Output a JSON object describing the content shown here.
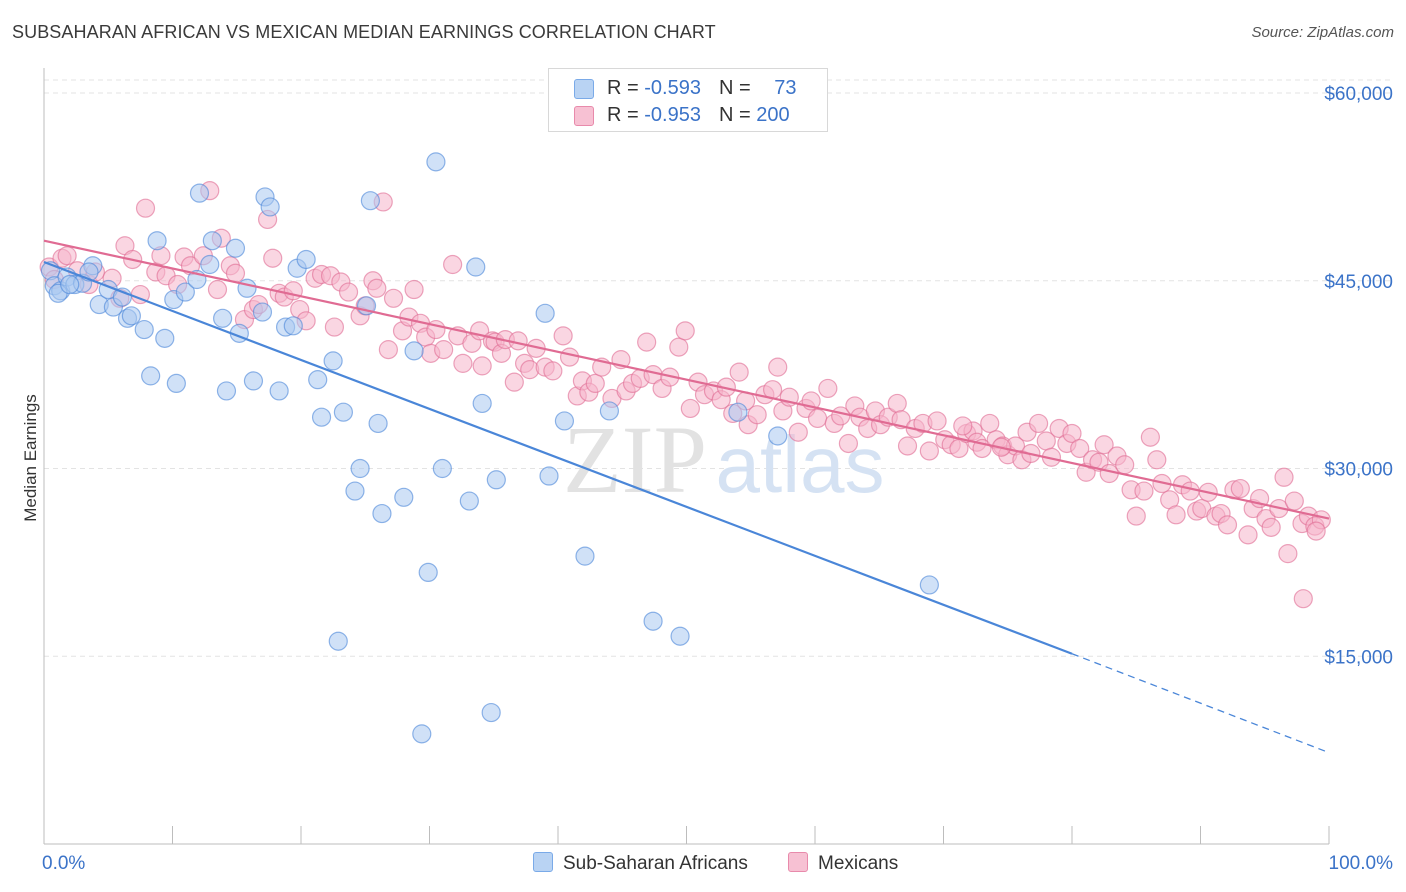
{
  "title": "SUBSAHARAN AFRICAN VS MEXICAN MEDIAN EARNINGS CORRELATION CHART",
  "source": "Source: ZipAtlas.com",
  "watermark": {
    "zip": "ZIP",
    "atlas": "atlas"
  },
  "legend": {
    "rows": [
      {
        "r_label": "R = ",
        "r_value": "-0.593",
        "n_label": "N = ",
        "n_value": "73",
        "color": "#7aaae8",
        "fill": "#b9d3f3"
      },
      {
        "r_label": "R = ",
        "r_value": "-0.953",
        "n_label": "N = ",
        "n_value": "200",
        "color": "#e88aab",
        "fill": "#f7c1d3"
      }
    ]
  },
  "chart_data": {
    "type": "scatter",
    "title": "SUBSAHARAN AFRICAN VS MEXICAN MEDIAN EARNINGS CORRELATION CHART",
    "xlabel": "",
    "ylabel": "Median Earnings",
    "xlim": [
      0,
      100
    ],
    "ylim": [
      0,
      62000
    ],
    "x_tick_labels": [
      "0.0%",
      "100.0%"
    ],
    "y_ticks": [
      15000,
      30000,
      45000,
      60000
    ],
    "y_tick_labels": [
      "$15,000",
      "$30,000",
      "$45,000",
      "$60,000"
    ],
    "grid": true,
    "legend_position": "bottom",
    "series": [
      {
        "name": "Sub-Saharan Africans",
        "color": "#4a86d8",
        "fill": "#a9c8f0",
        "trend": {
          "x0": 0,
          "y0": 46500,
          "x1": 80,
          "y1": 15200,
          "dash_to_x": 100,
          "dash_to_y": 7300
        },
        "points": [
          [
            0.5,
            45800
          ],
          [
            0.8,
            44600
          ],
          [
            1.3,
            44200
          ],
          [
            1.8,
            45300
          ],
          [
            2.4,
            44700
          ],
          [
            3.0,
            44800
          ],
          [
            3.8,
            46200
          ],
          [
            4.3,
            43100
          ],
          [
            5.0,
            44300
          ],
          [
            5.4,
            42900
          ],
          [
            6.1,
            43700
          ],
          [
            6.5,
            42000
          ],
          [
            6.8,
            42200
          ],
          [
            7.8,
            41100
          ],
          [
            8.3,
            37400
          ],
          [
            8.8,
            48200
          ],
          [
            9.4,
            40400
          ],
          [
            10.1,
            43500
          ],
          [
            10.3,
            36800
          ],
          [
            11.0,
            44100
          ],
          [
            11.9,
            45100
          ],
          [
            12.1,
            52000
          ],
          [
            12.9,
            46300
          ],
          [
            13.1,
            48200
          ],
          [
            13.9,
            42000
          ],
          [
            14.2,
            36200
          ],
          [
            14.9,
            47600
          ],
          [
            15.2,
            40800
          ],
          [
            15.8,
            44400
          ],
          [
            16.3,
            37000
          ],
          [
            17.0,
            42500
          ],
          [
            17.2,
            51700
          ],
          [
            17.6,
            50900
          ],
          [
            18.3,
            36200
          ],
          [
            18.8,
            41300
          ],
          [
            19.4,
            41400
          ],
          [
            19.7,
            46000
          ],
          [
            20.4,
            46700
          ],
          [
            21.3,
            37100
          ],
          [
            21.6,
            34100
          ],
          [
            22.5,
            38600
          ],
          [
            22.9,
            16200
          ],
          [
            23.3,
            34500
          ],
          [
            24.2,
            28200
          ],
          [
            24.6,
            30000
          ],
          [
            25.1,
            43000
          ],
          [
            25.4,
            51400
          ],
          [
            26.0,
            33600
          ],
          [
            26.3,
            26400
          ],
          [
            28.0,
            27700
          ],
          [
            28.8,
            39400
          ],
          [
            29.4,
            8800
          ],
          [
            29.9,
            21700
          ],
          [
            30.5,
            54500
          ],
          [
            31.0,
            30000
          ],
          [
            33.1,
            27400
          ],
          [
            33.6,
            46100
          ],
          [
            34.1,
            35200
          ],
          [
            34.8,
            10500
          ],
          [
            35.2,
            29100
          ],
          [
            39.0,
            42400
          ],
          [
            39.3,
            29400
          ],
          [
            40.5,
            33800
          ],
          [
            42.1,
            23000
          ],
          [
            44.0,
            34600
          ],
          [
            47.4,
            17800
          ],
          [
            49.5,
            16600
          ],
          [
            54.0,
            34500
          ],
          [
            57.1,
            32600
          ],
          [
            68.9,
            20700
          ],
          [
            1.1,
            44000
          ],
          [
            2.0,
            44700
          ],
          [
            3.5,
            45700
          ]
        ]
      },
      {
        "name": "Mexicans",
        "color": "#e06b93",
        "fill": "#f5b5ca",
        "trend": {
          "x0": 0,
          "y0": 48200,
          "x1": 100,
          "y1": 26000
        },
        "points": [
          [
            0.4,
            46100
          ],
          [
            0.8,
            45100
          ],
          [
            1.4,
            46800
          ],
          [
            1.8,
            47000
          ],
          [
            2.6,
            45800
          ],
          [
            3.5,
            44700
          ],
          [
            4.0,
            45700
          ],
          [
            5.3,
            45200
          ],
          [
            5.9,
            43600
          ],
          [
            6.3,
            47800
          ],
          [
            6.9,
            46700
          ],
          [
            7.5,
            43900
          ],
          [
            7.9,
            50800
          ],
          [
            8.7,
            45700
          ],
          [
            9.1,
            47000
          ],
          [
            9.5,
            45400
          ],
          [
            10.4,
            44700
          ],
          [
            10.9,
            46900
          ],
          [
            11.4,
            46200
          ],
          [
            12.4,
            47000
          ],
          [
            12.9,
            52200
          ],
          [
            13.5,
            44300
          ],
          [
            13.8,
            48400
          ],
          [
            14.5,
            46200
          ],
          [
            14.9,
            45600
          ],
          [
            15.6,
            41900
          ],
          [
            16.3,
            42700
          ],
          [
            16.7,
            43100
          ],
          [
            17.4,
            49900
          ],
          [
            17.8,
            46800
          ],
          [
            18.3,
            44000
          ],
          [
            18.7,
            43700
          ],
          [
            19.4,
            44200
          ],
          [
            19.9,
            42700
          ],
          [
            20.4,
            41800
          ],
          [
            21.1,
            45200
          ],
          [
            21.6,
            45500
          ],
          [
            22.3,
            45400
          ],
          [
            22.6,
            41300
          ],
          [
            23.1,
            44900
          ],
          [
            23.7,
            44100
          ],
          [
            24.6,
            42200
          ],
          [
            25.0,
            43000
          ],
          [
            25.6,
            45000
          ],
          [
            25.9,
            44400
          ],
          [
            26.4,
            51300
          ],
          [
            26.8,
            39500
          ],
          [
            27.2,
            43600
          ],
          [
            27.9,
            41000
          ],
          [
            28.4,
            42100
          ],
          [
            28.8,
            44300
          ],
          [
            29.3,
            41600
          ],
          [
            29.7,
            40500
          ],
          [
            30.1,
            39200
          ],
          [
            30.5,
            41100
          ],
          [
            31.1,
            39500
          ],
          [
            31.8,
            46300
          ],
          [
            32.2,
            40600
          ],
          [
            32.6,
            38400
          ],
          [
            33.3,
            40000
          ],
          [
            33.9,
            41000
          ],
          [
            34.1,
            38200
          ],
          [
            34.9,
            40200
          ],
          [
            35.1,
            40100
          ],
          [
            35.6,
            39200
          ],
          [
            35.9,
            40300
          ],
          [
            36.6,
            36900
          ],
          [
            36.9,
            40200
          ],
          [
            37.4,
            38400
          ],
          [
            37.8,
            37900
          ],
          [
            38.3,
            39600
          ],
          [
            39.0,
            38100
          ],
          [
            39.6,
            37800
          ],
          [
            40.4,
            40600
          ],
          [
            40.9,
            38900
          ],
          [
            41.5,
            35800
          ],
          [
            41.9,
            37000
          ],
          [
            42.4,
            36100
          ],
          [
            42.9,
            36800
          ],
          [
            43.4,
            38100
          ],
          [
            44.2,
            35600
          ],
          [
            44.9,
            38700
          ],
          [
            45.3,
            36200
          ],
          [
            45.8,
            36800
          ],
          [
            46.4,
            37200
          ],
          [
            46.9,
            40100
          ],
          [
            47.4,
            37500
          ],
          [
            48.1,
            36400
          ],
          [
            48.7,
            37300
          ],
          [
            49.4,
            39700
          ],
          [
            49.9,
            41000
          ],
          [
            50.3,
            34800
          ],
          [
            50.9,
            36900
          ],
          [
            51.4,
            35900
          ],
          [
            52.1,
            36200
          ],
          [
            52.7,
            35500
          ],
          [
            53.1,
            36500
          ],
          [
            53.6,
            34400
          ],
          [
            54.1,
            37700
          ],
          [
            54.6,
            35400
          ],
          [
            54.8,
            33500
          ],
          [
            55.5,
            34300
          ],
          [
            56.1,
            35900
          ],
          [
            56.7,
            36300
          ],
          [
            57.1,
            38100
          ],
          [
            57.5,
            34600
          ],
          [
            58.0,
            35700
          ],
          [
            58.7,
            32900
          ],
          [
            59.3,
            34800
          ],
          [
            59.7,
            35400
          ],
          [
            60.2,
            34000
          ],
          [
            61.0,
            36400
          ],
          [
            61.5,
            33600
          ],
          [
            62.0,
            34200
          ],
          [
            62.6,
            32000
          ],
          [
            63.1,
            35000
          ],
          [
            63.5,
            34100
          ],
          [
            64.1,
            33200
          ],
          [
            64.7,
            34600
          ],
          [
            65.1,
            33500
          ],
          [
            65.7,
            34100
          ],
          [
            66.4,
            35200
          ],
          [
            66.7,
            33900
          ],
          [
            67.2,
            31800
          ],
          [
            67.8,
            33200
          ],
          [
            68.4,
            33600
          ],
          [
            68.9,
            31400
          ],
          [
            69.5,
            33800
          ],
          [
            70.1,
            32300
          ],
          [
            70.6,
            31900
          ],
          [
            71.2,
            31600
          ],
          [
            71.8,
            32800
          ],
          [
            72.3,
            33000
          ],
          [
            72.6,
            32100
          ],
          [
            73.0,
            31600
          ],
          [
            73.6,
            33600
          ],
          [
            74.1,
            32300
          ],
          [
            74.6,
            31800
          ],
          [
            75.0,
            31100
          ],
          [
            75.6,
            31800
          ],
          [
            76.1,
            30700
          ],
          [
            76.5,
            32900
          ],
          [
            76.8,
            31200
          ],
          [
            77.4,
            33600
          ],
          [
            78.0,
            32200
          ],
          [
            78.4,
            30900
          ],
          [
            79.0,
            33200
          ],
          [
            79.6,
            32000
          ],
          [
            80.0,
            32800
          ],
          [
            80.6,
            31600
          ],
          [
            81.1,
            29700
          ],
          [
            81.6,
            30700
          ],
          [
            82.1,
            30500
          ],
          [
            82.5,
            31900
          ],
          [
            82.9,
            29600
          ],
          [
            83.5,
            31000
          ],
          [
            84.1,
            30300
          ],
          [
            84.6,
            28300
          ],
          [
            85.0,
            26200
          ],
          [
            85.6,
            28200
          ],
          [
            86.1,
            32500
          ],
          [
            86.6,
            30700
          ],
          [
            87.0,
            28800
          ],
          [
            87.6,
            27500
          ],
          [
            88.1,
            26300
          ],
          [
            88.6,
            28700
          ],
          [
            89.2,
            28200
          ],
          [
            89.7,
            26600
          ],
          [
            90.1,
            26800
          ],
          [
            90.6,
            28100
          ],
          [
            91.2,
            26200
          ],
          [
            91.6,
            26400
          ],
          [
            92.1,
            25500
          ],
          [
            92.6,
            28300
          ],
          [
            93.1,
            28400
          ],
          [
            93.7,
            24700
          ],
          [
            94.1,
            26800
          ],
          [
            94.6,
            27600
          ],
          [
            95.1,
            26000
          ],
          [
            95.5,
            25300
          ],
          [
            96.1,
            26800
          ],
          [
            96.5,
            29300
          ],
          [
            96.8,
            23200
          ],
          [
            97.3,
            27400
          ],
          [
            97.9,
            25600
          ],
          [
            98.4,
            26200
          ],
          [
            98.9,
            25400
          ],
          [
            99.4,
            25900
          ],
          [
            98.0,
            19600
          ],
          [
            99.0,
            25000
          ],
          [
            71.5,
            33400
          ],
          [
            74.5,
            31700
          ]
        ]
      }
    ]
  }
}
